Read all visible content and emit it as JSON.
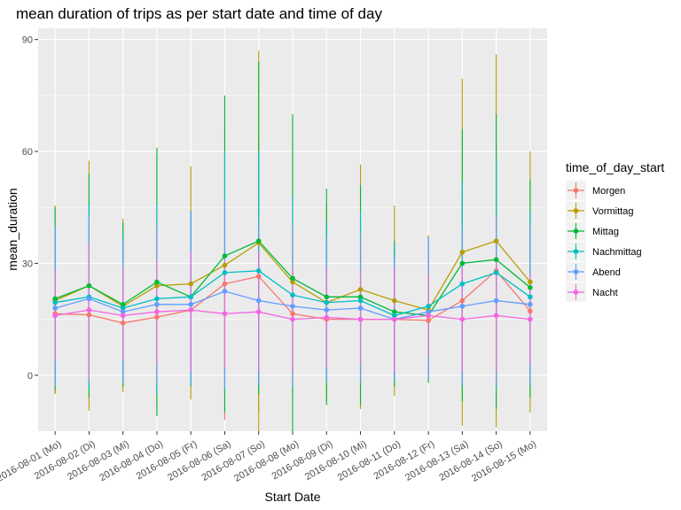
{
  "chart_data": {
    "type": "line",
    "title": "mean duration of trips as per start date and time of day",
    "xlabel": "Start Date",
    "ylabel": "mean_duration",
    "ylim": [
      -15,
      93
    ],
    "yticks": [
      0,
      30,
      60,
      90
    ],
    "grid": true,
    "legend_position": "right",
    "legend_title": "time_of_day_start",
    "categories": [
      "2016-08-01 (Mo)",
      "2016-08-02 (Di)",
      "2016-08-03 (Mi)",
      "2016-08-04 (Do)",
      "2016-08-05 (Fr)",
      "2016-08-06 (Sa)",
      "2016-08-07 (So)",
      "2016-08-08 (Mo)",
      "2016-08-09 (Di)",
      "2016-08-10 (Mi)",
      "2016-08-11 (Do)",
      "2016-08-12 (Fr)",
      "2016-08-13 (Sa)",
      "2016-08-14 (So)",
      "2016-08-15 (Mo)"
    ],
    "series": [
      {
        "name": "Morgen",
        "color": "#F8766D",
        "values": [
          16.5,
          16.2,
          14,
          15.6,
          17.5,
          24.5,
          26.5,
          16.5,
          15,
          15,
          15,
          14.7,
          20,
          28,
          17.2
        ],
        "err_low": [
          -5,
          -7,
          -3,
          -9,
          -3,
          -12,
          -10,
          -5,
          -5,
          -9,
          -3,
          -1,
          -6,
          -9,
          -6
        ],
        "err_high": [
          40,
          40,
          32,
          42,
          40,
          57,
          63,
          39,
          36,
          40,
          34,
          31,
          48,
          62,
          42
        ]
      },
      {
        "name": "Vormittag",
        "color": "#B79F00",
        "values": [
          20,
          24,
          18.5,
          24,
          24.5,
          29.5,
          35.5,
          25,
          19.5,
          23,
          20,
          17.5,
          33,
          36,
          25
        ],
        "err_low": [
          -5,
          -9.5,
          -4.5,
          -10,
          -6.5,
          -10,
          -16,
          -5,
          -7,
          -9,
          -5.5,
          -2,
          -13.5,
          -14,
          -10
        ],
        "err_high": [
          45.5,
          57.5,
          42,
          59,
          56,
          67,
          87,
          60,
          46,
          56.5,
          45.5,
          37.5,
          79.5,
          86,
          60
        ]
      },
      {
        "name": "Mittag",
        "color": "#00BA38",
        "values": [
          20.5,
          24,
          19,
          25,
          21,
          32,
          36,
          26,
          21,
          21,
          17,
          16,
          30,
          31,
          23.5
        ],
        "err_low": [
          -4,
          -6,
          -3,
          -11,
          -2,
          -10,
          -5,
          -18,
          -8,
          -8,
          -3,
          -2,
          -7,
          -9,
          -6
        ],
        "err_high": [
          45,
          54,
          41,
          61,
          44,
          75,
          84,
          70,
          50,
          51,
          36,
          37,
          66,
          70,
          52.5
        ]
      },
      {
        "name": "Nachmittag",
        "color": "#00BFC4",
        "values": [
          19.5,
          21,
          18,
          20.5,
          21,
          27.5,
          28,
          21.5,
          19.5,
          20,
          16,
          18.5,
          24.5,
          27.5,
          21
        ],
        "err_low": [
          -3,
          -4,
          -2,
          -5,
          -3,
          -4,
          -3,
          -4,
          -2,
          -2,
          -2,
          -1,
          -3,
          -4,
          -3
        ],
        "err_high": [
          40,
          46,
          38,
          46,
          44,
          60,
          60,
          48,
          41,
          44,
          35,
          37,
          52,
          58,
          44
        ]
      },
      {
        "name": "Abend",
        "color": "#619CFF",
        "values": [
          18,
          20.5,
          17,
          19,
          19,
          22.5,
          20,
          18.5,
          17.5,
          18,
          15,
          17,
          18.5,
          20,
          19
        ],
        "err_low": [
          -3,
          -2,
          -2,
          -2,
          -2,
          -3,
          -2,
          -3,
          -2,
          -2,
          -1,
          -1,
          -2,
          -3,
          -2
        ],
        "err_high": [
          40,
          43,
          36,
          40,
          44,
          47,
          42,
          40,
          37,
          38,
          32,
          37,
          40,
          43,
          40
        ]
      },
      {
        "name": "Nacht",
        "color": "#F564E3",
        "values": [
          16,
          17.5,
          16,
          17,
          17.5,
          16.5,
          17,
          15,
          15.5,
          15,
          15,
          16,
          15,
          16,
          15
        ],
        "err_low": [
          4,
          -1,
          4,
          3,
          1,
          2,
          1,
          1,
          2,
          3,
          1,
          5,
          1,
          1,
          3
        ],
        "err_high": [
          28,
          35,
          29,
          31,
          33,
          31,
          33,
          29,
          29,
          28,
          29,
          27,
          29,
          31,
          27
        ]
      }
    ]
  }
}
